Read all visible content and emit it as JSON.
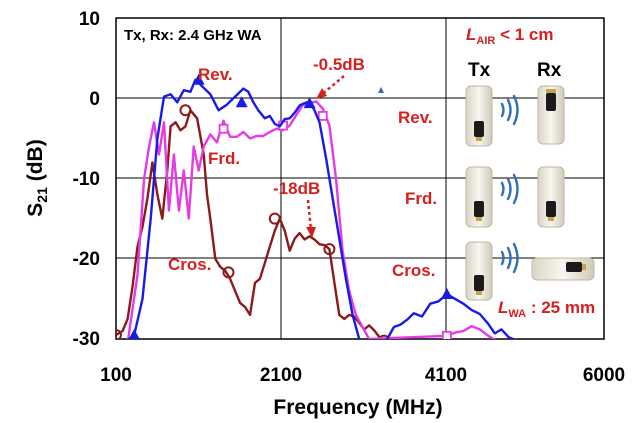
{
  "chart_data": {
    "type": "line",
    "xlabel": "Frequency (MHz)",
    "ylabel_main": "S",
    "ylabel_sub": "21",
    "ylabel_unit": " (dB)",
    "xlim": [
      100,
      6000
    ],
    "ylim": [
      -30,
      10
    ],
    "x_ticks": [
      100,
      2100,
      4100,
      6000
    ],
    "x_tick_labels": [
      "100",
      "2100",
      "4100",
      "6000"
    ],
    "y_ticks": [
      10,
      0,
      -10,
      -20,
      -30
    ],
    "y_tick_labels": [
      "10",
      "0",
      "-10",
      "-20",
      "-30"
    ],
    "grid": true,
    "series": [
      {
        "label": "Rev.",
        "color": "#1a1ae6",
        "marker": "triangle",
        "x": [
          100,
          200,
          320,
          420,
          520,
          600,
          680,
          760,
          840,
          920,
          1000,
          1060,
          1140,
          1240,
          1340,
          1440,
          1540,
          1640,
          1700,
          1760,
          1820,
          1900,
          1960,
          2020,
          2080,
          2140,
          2200,
          2260,
          2320,
          2380,
          2440,
          2500,
          2560,
          2640,
          2720,
          2800,
          2880,
          2960,
          3040,
          3100,
          3160,
          3220,
          3300,
          3380,
          3460,
          3540,
          3620,
          3700,
          3800,
          3900,
          4000,
          4100,
          4200,
          4300,
          4400,
          4500,
          4600,
          4680,
          4760,
          4850,
          4950
        ],
        "y": [
          -31,
          -30.5,
          -29.5,
          -25,
          -15,
          -5,
          0.2,
          0.5,
          -0.5,
          1,
          0.8,
          2.3,
          1.5,
          0.5,
          -1.5,
          -0.8,
          0.2,
          1.2,
          0.8,
          -0.5,
          -1.5,
          -2.5,
          -2.2,
          -3.2,
          -3.5,
          -2.6,
          -2.5,
          -1.8,
          -0.9,
          -0.6,
          -0.4,
          -1.5,
          -3.0,
          -7.5,
          -12.5,
          -17.5,
          -22.5,
          -27.0,
          -30.0,
          -31.5,
          -31.5,
          -31.0,
          -30.5,
          -30.0,
          -28.5,
          -28.2,
          -27.6,
          -26.8,
          -27.2,
          -25.6,
          -25.3,
          -24.4,
          -25.0,
          -25.6,
          -26.4,
          -26.9,
          -28.1,
          -29.3,
          -28.8,
          -29.8,
          -30.2
        ],
        "marker_x": [
          320,
          1100,
          1620,
          2440,
          4100
        ],
        "marker_y": [
          -29.5,
          2.3,
          -0.5,
          -0.6,
          -24.4
        ]
      },
      {
        "label": "Frd.",
        "color": "#e63ae6",
        "marker": "square",
        "x": [
          100,
          240,
          360,
          440,
          500,
          560,
          620,
          680,
          740,
          800,
          860,
          920,
          980,
          1040,
          1100,
          1160,
          1240,
          1320,
          1400,
          1480,
          1560,
          1640,
          1720,
          1800,
          1880,
          1960,
          2040,
          2120,
          2200,
          2280,
          2360,
          2440,
          2520,
          2600,
          2680,
          2760,
          2840,
          2920,
          3000,
          3080,
          3160,
          4100,
          4200,
          4300,
          4400,
          4500,
          4600,
          4700,
          4800
        ],
        "y": [
          -31.5,
          -30.5,
          -22,
          -10,
          -6,
          -3,
          -7,
          -3,
          -14,
          -7,
          -14,
          -9,
          -15,
          -6,
          -9,
          -6,
          -4.5,
          -5.5,
          -2.8,
          -4.8,
          -4.8,
          -4.2,
          -5.0,
          -4.7,
          -4.7,
          -4.2,
          -3.8,
          -4.0,
          -3.4,
          -2.1,
          -0.8,
          -0.6,
          -0.4,
          -1.3,
          -3.4,
          -10,
          -19,
          -24,
          -27,
          -28.5,
          -30,
          -29.6,
          -29.2,
          -29.0,
          -28.4,
          -28.8,
          -29.6,
          -30.2,
          -31.5
        ],
        "marker_x": [
          1400,
          2120,
          2600,
          4100
        ],
        "marker_y": [
          -3.8,
          -3.4,
          -2.2,
          -29.6
        ]
      },
      {
        "label": "Cros.",
        "color": "#8b1a1a",
        "marker": "circle",
        "x": [
          100,
          180,
          240,
          300,
          360,
          420,
          480,
          540,
          600,
          660,
          720,
          760,
          820,
          880,
          940,
          1000,
          1080,
          1160,
          1200,
          1240,
          1300,
          1360,
          1420,
          1480,
          1540,
          1600,
          1660,
          1720,
          1780,
          1840,
          1900,
          1960,
          2020,
          2080,
          2140,
          2200,
          2260,
          2320,
          2380,
          2440,
          2500,
          2560,
          2620,
          2680,
          2740,
          2800,
          2860,
          2920,
          2980,
          3040,
          3100,
          3160,
          3220,
          3280,
          3340
        ],
        "y": [
          -29.5,
          -29.0,
          -27.5,
          -23.5,
          -18.5,
          -16.0,
          -12.5,
          -8.0,
          -12.0,
          -15.0,
          -9.0,
          -3.5,
          -3.0,
          -4.0,
          -3.5,
          -1.5,
          -2.5,
          -7.0,
          -12.0,
          -15.0,
          -20.0,
          -21.0,
          -21.5,
          -22.5,
          -24.0,
          -25.5,
          -26.0,
          -27.0,
          -23.0,
          -22.5,
          -20.5,
          -18.5,
          -16.5,
          -15.0,
          -16.5,
          -19.0,
          -17.5,
          -16.8,
          -17.6,
          -17.2,
          -17.6,
          -18.2,
          -18.3,
          -18.8,
          -23.0,
          -27.0,
          -27.5,
          -27.0,
          -27.2,
          -28.0,
          -28.8,
          -28.3,
          -28.9,
          -29.7,
          -30.2
        ],
        "marker_x": [
          100,
          940,
          1460,
          2020,
          2680,
          3340
        ],
        "marker_y": [
          -29.5,
          -1.5,
          -21.7,
          -15.0,
          -18.8,
          -30.2
        ]
      }
    ]
  },
  "texts": {
    "condition": "Tx, Rx: 2.4 GHz  WA",
    "rev_label_top": "Rev.",
    "frd_label_chart": "Frd.",
    "cros_label_chart": "Cros.",
    "minus05": "-0.5dB",
    "minus18": "-18dB",
    "dot": "▲",
    "l_air_main": "L",
    "l_air_sub": "AIR",
    "l_air_rest": " < 1 cm",
    "tx": "Tx",
    "rx": "Rx",
    "rev_right": "Rev.",
    "frd_right": "Frd.",
    "cros_right": "Cros.",
    "l_wa_main": "L",
    "l_wa_sub": "WA",
    "l_wa_rest": " : 25 mm"
  },
  "icons": {
    "signal_icon": "wireless-waves-icon",
    "device_icon": "antenna-device-icon"
  },
  "colors": {
    "annotation_red": "#d62020",
    "waves_blue": "#2f6fb5"
  }
}
